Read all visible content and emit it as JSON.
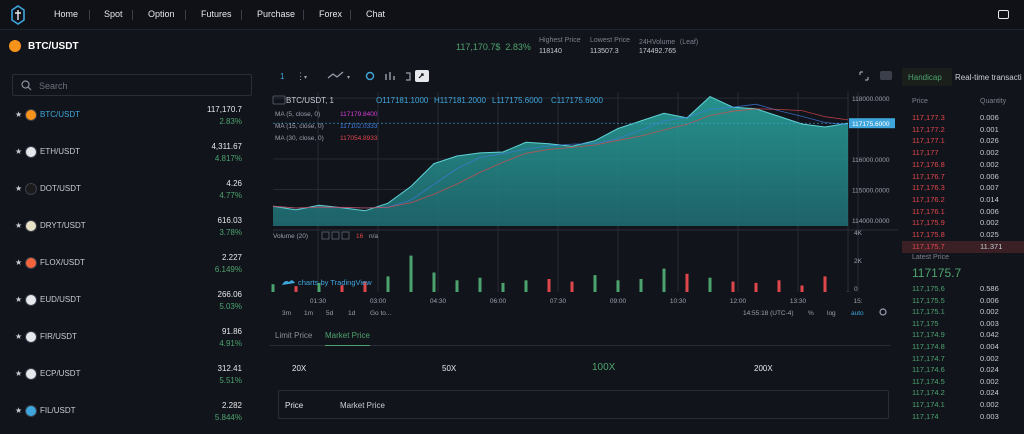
{
  "nav": {
    "items": [
      "Home",
      "Spot",
      "Option",
      "Futures",
      "Purchase",
      "Forex",
      "Chat"
    ]
  },
  "ticker": {
    "pair": "BTC/USDT",
    "last": "117,170.7$",
    "change": "2.83%",
    "stats": [
      {
        "label": "Highest Price",
        "value": "118140"
      },
      {
        "label": "Lowest Price",
        "value": "113507.3"
      },
      {
        "label": "24HVolume（Leaf)",
        "value": "174492.765"
      }
    ]
  },
  "search": {
    "placeholder": "Search"
  },
  "markets": [
    {
      "symbol": "BTC/USDT",
      "price": "117,170.7",
      "change": "2.83%",
      "color": "#f7931a"
    },
    {
      "symbol": "ETH/USDT",
      "price": "4,311.67",
      "change": "4.817%",
      "color": "#e6e8ec"
    },
    {
      "symbol": "DOT/USDT",
      "price": "4.26",
      "change": "4.77%",
      "color": "#1b1b1b"
    },
    {
      "symbol": "DRYT/USDT",
      "price": "616.03",
      "change": "3.78%",
      "color": "#e8e2c8"
    },
    {
      "symbol": "FLOX/USDT",
      "price": "2.227",
      "change": "6.149%",
      "color": "#f2643b"
    },
    {
      "symbol": "EUD/USDT",
      "price": "266.06",
      "change": "5.03%",
      "color": "#e6e8ec"
    },
    {
      "symbol": "FIR/USDT",
      "price": "91.86",
      "change": "4.91%",
      "color": "#e6e8ec"
    },
    {
      "symbol": "ECP/USDT",
      "price": "312.41",
      "change": "5.51%",
      "color": "#e6e8ec"
    },
    {
      "symbol": "FIL/USDT",
      "price": "2.282",
      "change": "5.844%",
      "color": "#3ea6dc"
    }
  ],
  "chart": {
    "legend": {
      "title": "BTC/USDT, 1",
      "o": "O117181.1000",
      "h": "H117181.2000",
      "l": "L117175.6000",
      "c": "C117175.6000"
    },
    "ma": [
      {
        "label": "MA (5, close, 0)",
        "value": "117179.8400",
        "color": "#d63cd8"
      },
      {
        "label": "MA (15, close, 0)",
        "value": "117102.0333",
        "color": "#3e7de0"
      },
      {
        "label": "MA (30, close, 0)",
        "value": "117054.8933",
        "color": "#e0474c"
      }
    ],
    "volume_label": "Volume (20)",
    "volume_value": "16",
    "volume_na": "n/a",
    "watermark": "charts by TradingView",
    "price_axis": [
      "118000.0000",
      "117175.6000",
      "116000.0000",
      "115000.0000",
      "114000.0000"
    ],
    "volume_axis": [
      "4K",
      "2K",
      "0"
    ],
    "time_axis": [
      "01:30",
      "03:00",
      "04:30",
      "06:00",
      "07:30",
      "09:00",
      "10:30",
      "12:00",
      "13:30",
      "15:"
    ],
    "intervals": [
      "3m",
      "1m",
      "5d",
      "1d",
      "Go to..."
    ],
    "clock": "14:55:18 (UTC-4)",
    "scale_opts": [
      "%",
      "log",
      "auto"
    ]
  },
  "chart_data": {
    "type": "area",
    "title": "BTC/USDT, 1",
    "xlabel": "",
    "ylabel": "",
    "ylim": [
      113800,
      118200
    ],
    "x": [
      "00:45",
      "01:30",
      "02:15",
      "03:00",
      "03:45",
      "04:30",
      "04:45",
      "05:15",
      "06:00",
      "06:45",
      "07:30",
      "08:15",
      "09:00",
      "09:45",
      "10:00",
      "10:30",
      "11:15",
      "11:45",
      "12:00",
      "12:15",
      "12:45",
      "13:00",
      "13:30",
      "13:45",
      "14:15",
      "14:45"
    ],
    "series": [
      {
        "name": "",
        "values": [
          114450,
          114330,
          114480,
          114400,
          114300,
          114550,
          115100,
          115850,
          116100,
          116200,
          116230,
          116550,
          116500,
          116420,
          116600,
          117000,
          117250,
          117500,
          117350,
          118050,
          117700,
          117650,
          117400,
          117150,
          117050,
          117175.6
        ]
      }
    ],
    "volume": [
      600,
      450,
      700,
      520,
      800,
      1200,
      2800,
      1500,
      900,
      1100,
      700,
      900,
      1000,
      800,
      1300,
      900,
      1000,
      1800,
      1400,
      1100,
      800,
      700,
      900,
      500,
      1200,
      16
    ]
  },
  "order": {
    "tabs": [
      "Limit Price",
      "Market Price"
    ],
    "active": 1,
    "leverage": [
      "20X",
      "50X",
      "100X",
      "200X"
    ],
    "active_leverage": 2,
    "price_label": "Price",
    "price_value": "Market Price"
  },
  "book": {
    "tabs": [
      "Handicap",
      "Real-time transacti"
    ],
    "headers": [
      "Price",
      "Quantity"
    ],
    "asks": [
      {
        "p": "117,177.3",
        "q": "0.006"
      },
      {
        "p": "117,177.2",
        "q": "0.001"
      },
      {
        "p": "117,177.1",
        "q": "0.026"
      },
      {
        "p": "117,177",
        "q": "0.002"
      },
      {
        "p": "117,176.8",
        "q": "0.002"
      },
      {
        "p": "117,176.7",
        "q": "0.006"
      },
      {
        "p": "117,176.3",
        "q": "0.007"
      },
      {
        "p": "117,176.2",
        "q": "0.014"
      },
      {
        "p": "117,176.1",
        "q": "0.006"
      },
      {
        "p": "117,175.9",
        "q": "0.002"
      },
      {
        "p": "117,175.8",
        "q": "0.025"
      },
      {
        "p": "117,175.7",
        "q": "11.371"
      }
    ],
    "latest_label": "Latest Price",
    "latest": "117175.7",
    "bids": [
      {
        "p": "117,175.6",
        "q": "0.586"
      },
      {
        "p": "117,175.5",
        "q": "0.006"
      },
      {
        "p": "117,175.1",
        "q": "0.002"
      },
      {
        "p": "117,175",
        "q": "0.003"
      },
      {
        "p": "117,174.9",
        "q": "0.042"
      },
      {
        "p": "117,174.8",
        "q": "0.004"
      },
      {
        "p": "117,174.7",
        "q": "0.002"
      },
      {
        "p": "117,174.6",
        "q": "0.024"
      },
      {
        "p": "117,174.5",
        "q": "0.002"
      },
      {
        "p": "117,174.2",
        "q": "0.024"
      },
      {
        "p": "117,174.1",
        "q": "0.002"
      },
      {
        "p": "117,174",
        "q": "0.003"
      }
    ]
  },
  "colors": {
    "up": "#4ca36e",
    "down": "#e0474c",
    "accent": "#4ca36e",
    "area": "#2aa8a0"
  }
}
